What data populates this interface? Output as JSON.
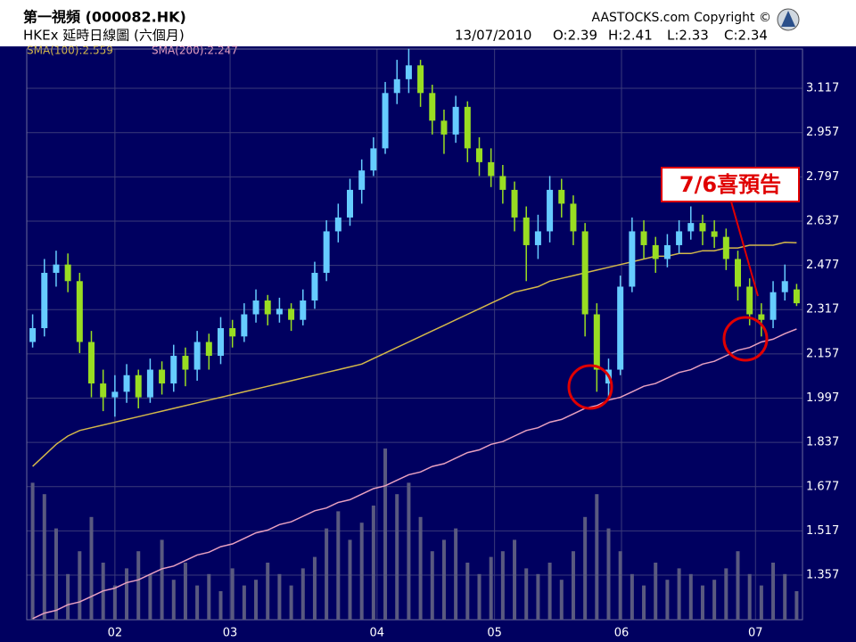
{
  "chart_data": {
    "type": "candlestick",
    "title": "第一視頻 (000082.HK)",
    "subtitle": "HKEx 延時日線圖 (六個月)",
    "copyright": "AASTOCKS.com Copyright ©",
    "quote": [
      "13/07/2010",
      "O:2.39",
      "H:2.41",
      "L:2.33",
      "C:2.34"
    ],
    "annotation": "7/6喜預告",
    "up_color": "#66ccff",
    "down_color": "#99dd22",
    "candles": [
      [
        2.2,
        2.3,
        2.18,
        2.25
      ],
      [
        2.25,
        2.5,
        2.22,
        2.45
      ],
      [
        2.45,
        2.53,
        2.4,
        2.48
      ],
      [
        2.48,
        2.52,
        2.38,
        2.42
      ],
      [
        2.42,
        2.45,
        2.16,
        2.2
      ],
      [
        2.2,
        2.24,
        2.0,
        2.05
      ],
      [
        2.05,
        2.1,
        1.95,
        2.0
      ],
      [
        2.0,
        2.08,
        1.93,
        2.02
      ],
      [
        2.02,
        2.12,
        1.98,
        2.08
      ],
      [
        2.08,
        2.1,
        1.96,
        2.0
      ],
      [
        2.0,
        2.14,
        1.98,
        2.1
      ],
      [
        2.1,
        2.13,
        2.01,
        2.05
      ],
      [
        2.05,
        2.19,
        2.02,
        2.15
      ],
      [
        2.15,
        2.18,
        2.04,
        2.1
      ],
      [
        2.1,
        2.24,
        2.06,
        2.2
      ],
      [
        2.2,
        2.23,
        2.1,
        2.15
      ],
      [
        2.15,
        2.29,
        2.12,
        2.25
      ],
      [
        2.25,
        2.28,
        2.18,
        2.22
      ],
      [
        2.22,
        2.34,
        2.2,
        2.3
      ],
      [
        2.3,
        2.39,
        2.27,
        2.35
      ],
      [
        2.35,
        2.37,
        2.26,
        2.3
      ],
      [
        2.3,
        2.36,
        2.27,
        2.32
      ],
      [
        2.32,
        2.34,
        2.24,
        2.28
      ],
      [
        2.28,
        2.39,
        2.26,
        2.35
      ],
      [
        2.35,
        2.49,
        2.32,
        2.45
      ],
      [
        2.45,
        2.64,
        2.42,
        2.6
      ],
      [
        2.6,
        2.7,
        2.56,
        2.65
      ],
      [
        2.65,
        2.79,
        2.62,
        2.75
      ],
      [
        2.75,
        2.86,
        2.7,
        2.82
      ],
      [
        2.82,
        2.94,
        2.8,
        2.9
      ],
      [
        2.9,
        3.14,
        2.88,
        3.1
      ],
      [
        3.1,
        3.22,
        3.06,
        3.15
      ],
      [
        3.15,
        3.26,
        3.1,
        3.2
      ],
      [
        3.2,
        3.22,
        3.05,
        3.1
      ],
      [
        3.1,
        3.13,
        2.95,
        3.0
      ],
      [
        3.0,
        3.04,
        2.88,
        2.95
      ],
      [
        2.95,
        3.09,
        2.92,
        3.05
      ],
      [
        3.05,
        3.07,
        2.85,
        2.9
      ],
      [
        2.9,
        2.94,
        2.8,
        2.85
      ],
      [
        2.85,
        2.9,
        2.76,
        2.8
      ],
      [
        2.8,
        2.84,
        2.7,
        2.75
      ],
      [
        2.75,
        2.78,
        2.6,
        2.65
      ],
      [
        2.65,
        2.69,
        2.42,
        2.55
      ],
      [
        2.55,
        2.66,
        2.5,
        2.6
      ],
      [
        2.6,
        2.8,
        2.56,
        2.75
      ],
      [
        2.75,
        2.79,
        2.65,
        2.7
      ],
      [
        2.7,
        2.73,
        2.55,
        2.6
      ],
      [
        2.6,
        2.63,
        2.22,
        2.3
      ],
      [
        2.3,
        2.34,
        2.02,
        2.1
      ],
      [
        2.05,
        2.14,
        1.99,
        2.1
      ],
      [
        2.1,
        2.44,
        2.08,
        2.4
      ],
      [
        2.4,
        2.65,
        2.38,
        2.6
      ],
      [
        2.6,
        2.64,
        2.5,
        2.55
      ],
      [
        2.55,
        2.58,
        2.45,
        2.5
      ],
      [
        2.5,
        2.59,
        2.47,
        2.55
      ],
      [
        2.55,
        2.64,
        2.52,
        2.6
      ],
      [
        2.6,
        2.69,
        2.57,
        2.63
      ],
      [
        2.63,
        2.66,
        2.55,
        2.6
      ],
      [
        2.6,
        2.64,
        2.54,
        2.58
      ],
      [
        2.58,
        2.61,
        2.46,
        2.5
      ],
      [
        2.5,
        2.53,
        2.35,
        2.4
      ],
      [
        2.4,
        2.43,
        2.26,
        2.3
      ],
      [
        2.3,
        2.34,
        2.22,
        2.28
      ],
      [
        2.28,
        2.42,
        2.25,
        2.38
      ],
      [
        2.38,
        2.48,
        2.35,
        2.42
      ],
      [
        2.39,
        2.41,
        2.33,
        2.34
      ]
    ],
    "volume": {
      "color": "#5a5a80",
      "ylim": [
        0,
        500
      ],
      "values": [
        120,
        110,
        80,
        40,
        60,
        90,
        50,
        30,
        45,
        60,
        40,
        70,
        35,
        50,
        30,
        40,
        25,
        45,
        30,
        35,
        50,
        40,
        30,
        45,
        55,
        80,
        95,
        70,
        85,
        100,
        150,
        110,
        120,
        90,
        60,
        70,
        80,
        50,
        40,
        55,
        60,
        70,
        45,
        40,
        50,
        35,
        60,
        90,
        110,
        80,
        60,
        40,
        30,
        50,
        35,
        45,
        40,
        30,
        35,
        45,
        60,
        40,
        30,
        50,
        40,
        25
      ]
    },
    "series": [
      {
        "name": "SMA(100):2.559",
        "color": "#d4b84a",
        "values": [
          1.75,
          1.79,
          1.83,
          1.86,
          1.88,
          1.89,
          1.9,
          1.91,
          1.92,
          1.93,
          1.94,
          1.95,
          1.96,
          1.97,
          1.98,
          1.99,
          2.0,
          2.01,
          2.02,
          2.03,
          2.04,
          2.05,
          2.06,
          2.07,
          2.08,
          2.09,
          2.1,
          2.11,
          2.12,
          2.14,
          2.16,
          2.18,
          2.2,
          2.22,
          2.24,
          2.26,
          2.28,
          2.3,
          2.32,
          2.34,
          2.36,
          2.38,
          2.39,
          2.4,
          2.42,
          2.43,
          2.44,
          2.45,
          2.46,
          2.47,
          2.48,
          2.49,
          2.5,
          2.51,
          2.51,
          2.52,
          2.52,
          2.53,
          2.53,
          2.54,
          2.54,
          2.55,
          2.55,
          2.55,
          2.56,
          2.559
        ]
      },
      {
        "name": "SMA(200):2.247",
        "color": "#e8a0c0",
        "values": [
          1.2,
          1.22,
          1.23,
          1.25,
          1.26,
          1.28,
          1.3,
          1.31,
          1.33,
          1.34,
          1.36,
          1.38,
          1.39,
          1.41,
          1.43,
          1.44,
          1.46,
          1.47,
          1.49,
          1.51,
          1.52,
          1.54,
          1.55,
          1.57,
          1.59,
          1.6,
          1.62,
          1.63,
          1.65,
          1.67,
          1.68,
          1.7,
          1.72,
          1.73,
          1.75,
          1.76,
          1.78,
          1.8,
          1.81,
          1.83,
          1.84,
          1.86,
          1.88,
          1.89,
          1.91,
          1.92,
          1.94,
          1.96,
          1.97,
          1.99,
          2.0,
          2.02,
          2.04,
          2.05,
          2.07,
          2.09,
          2.1,
          2.12,
          2.13,
          2.15,
          2.17,
          2.18,
          2.2,
          2.21,
          2.23,
          2.247
        ]
      }
    ],
    "xlim": [
      0,
      66
    ],
    "xticks": [
      {
        "value": 7.5,
        "label": "02"
      },
      {
        "value": 17.3,
        "label": "03"
      },
      {
        "value": 29.8,
        "label": "04"
      },
      {
        "value": 39.8,
        "label": "05"
      },
      {
        "value": 50.6,
        "label": "06"
      },
      {
        "value": 62,
        "label": "07"
      }
    ],
    "ylim": [
      1.196,
      3.259
    ],
    "yticks": [
      3.117,
      2.957,
      2.797,
      2.637,
      2.477,
      2.317,
      2.157,
      1.997,
      1.837,
      1.677,
      1.517,
      1.357
    ],
    "grid": true
  }
}
